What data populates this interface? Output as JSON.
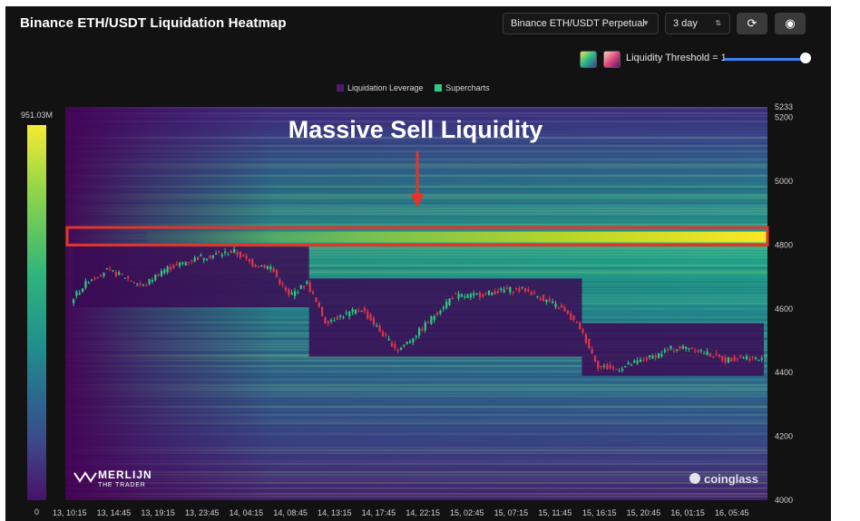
{
  "header": {
    "title": "Binance ETH/USDT Liquidation Heatmap",
    "exchange_select": "Binance ETH/USDT Perpetual",
    "range_select": "3 day",
    "refresh_icon": "refresh-icon",
    "camera_icon": "camera-icon"
  },
  "controls": {
    "threshold_label": "Liquidity Threshold = 1",
    "threshold_value": 1,
    "palette_swatches": [
      "viridis",
      "magma"
    ]
  },
  "legend": {
    "items": [
      {
        "name": "Liquidation Leverage",
        "color": "#4a1a6b"
      },
      {
        "name": "Supercharts",
        "color": "#2fc98a"
      }
    ]
  },
  "colorbar": {
    "max_label": "951.03M",
    "min_label": "0"
  },
  "watermarks": {
    "left_line1": "MERLIJN",
    "left_line2": "THE TRADER",
    "right": "coinglass"
  },
  "annotation": {
    "text": "Massive Sell Liquidity",
    "highlight_price_range": [
      4800,
      4855
    ],
    "highlight_color": "#e0362c"
  },
  "chart_data": {
    "type": "heatmap",
    "title": "Binance ETH/USDT Liquidation Heatmap",
    "xlabel": "",
    "ylabel": "",
    "ylim": [
      4000,
      5233
    ],
    "y_ticks": [
      "5233",
      "5200",
      "5000",
      "4800",
      "4600",
      "4400",
      "4200",
      "4000"
    ],
    "x_ticks": [
      "13, 10:15",
      "13, 14:45",
      "13, 19:15",
      "13, 23:45",
      "14, 04:15",
      "14, 08:45",
      "14, 13:15",
      "14, 17:45",
      "14, 22:15",
      "15, 02:45",
      "15, 07:15",
      "15, 11:45",
      "15, 16:15",
      "15, 20:45",
      "16, 01:15",
      "16, 05:45"
    ],
    "color_scale": {
      "min": 0,
      "max": "951.03M"
    },
    "liquidity_bands": [
      {
        "price": 4825,
        "intensity": 1.0
      },
      {
        "price": 4790,
        "intensity": 0.55
      },
      {
        "price": 4715,
        "intensity": 0.45
      },
      {
        "price": 4450,
        "intensity": 0.4
      },
      {
        "price": 4950,
        "intensity": 0.35
      },
      {
        "price": 5050,
        "intensity": 0.2
      },
      {
        "price": 4350,
        "intensity": 0.3
      }
    ],
    "price_series": [
      [
        0,
        4625
      ],
      [
        1,
        4690
      ],
      [
        2,
        4720
      ],
      [
        3,
        4700
      ],
      [
        4,
        4670
      ],
      [
        5,
        4720
      ],
      [
        6,
        4740
      ],
      [
        7,
        4760
      ],
      [
        8,
        4770
      ],
      [
        9,
        4780
      ],
      [
        10,
        4740
      ],
      [
        11,
        4730
      ],
      [
        12,
        4640
      ],
      [
        13,
        4680
      ],
      [
        14,
        4560
      ],
      [
        15,
        4580
      ],
      [
        16,
        4600
      ],
      [
        17,
        4530
      ],
      [
        18,
        4470
      ],
      [
        19,
        4520
      ],
      [
        20,
        4580
      ],
      [
        21,
        4640
      ],
      [
        22,
        4640
      ],
      [
        23,
        4650
      ],
      [
        24,
        4660
      ],
      [
        25,
        4660
      ],
      [
        26,
        4630
      ],
      [
        27,
        4600
      ],
      [
        28,
        4540
      ],
      [
        29,
        4420
      ],
      [
        30,
        4410
      ],
      [
        31,
        4430
      ],
      [
        32,
        4450
      ],
      [
        33,
        4475
      ],
      [
        34,
        4480
      ],
      [
        35,
        4460
      ],
      [
        36,
        4440
      ],
      [
        37,
        4450
      ],
      [
        38,
        4440
      ]
    ]
  }
}
